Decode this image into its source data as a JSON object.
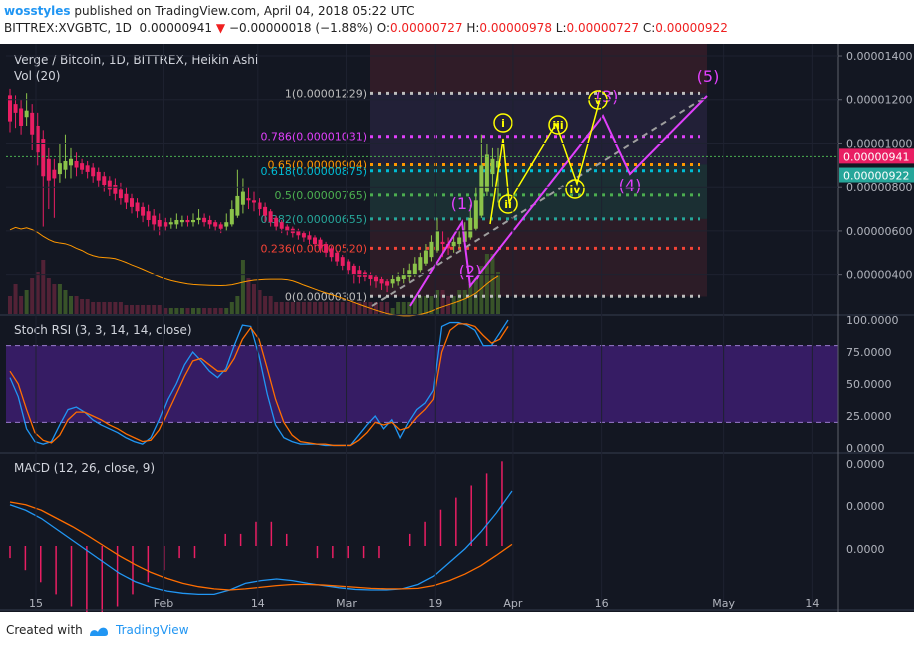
{
  "header": {
    "author": "wosstyles",
    "published_text": "published on TradingView.com, April 04, 2018 05:22 UTC",
    "symbol": "BITTREX:XVGBTC, 1D",
    "last": "0.00000941",
    "change": "−0.00000018 (−1.88%)",
    "o_label": "O:",
    "o_val": "0.00000727",
    "h_label": "H:",
    "h_val": "0.00000978",
    "l_label": "L:",
    "l_val": "0.00000727",
    "c_label": "C:",
    "c_val": "0.00000922"
  },
  "footer": {
    "created_with": "Created with",
    "brand": "TradingView"
  },
  "colors": {
    "background": "#131722",
    "up": "#8bc34a",
    "down": "#e91e63",
    "fib_zone": "#3d1f2b",
    "fib_zone2": "#1f3a3a",
    "stoch_band": "#3b1d6b",
    "stoch_k": "#2196f3",
    "stoch_d": "#ff6d00",
    "wave_yellow": "#ffff00",
    "wave_magenta": "#e040fb",
    "price_last": "#e91e63",
    "price_close": "#26a69a"
  },
  "chart_data": [
    {
      "type": "candlestick",
      "title": "Verge / Bitcoin, 1D, BITTREX, Heikin Ashi",
      "subtitle": "Vol (20)",
      "x_ticks": [
        "15",
        "Feb",
        "14",
        "Mar",
        "19",
        "Apr",
        "16",
        "May",
        "14"
      ],
      "y_ticks": [
        "0.00001400",
        "0.00001200",
        "0.00001000",
        "0.00000800",
        "0.00000600",
        "0.00000400"
      ],
      "ylim": [
        2.2e-06,
        1.455e-05
      ],
      "last_price_label": "0.00000941",
      "close_price_label": "0.00000922",
      "fib_levels": [
        {
          "label": "1(0.00001229)",
          "value": 1.229e-05,
          "color": "#bdbdbd"
        },
        {
          "label": "0.786(0.00001031)",
          "value": 1.031e-05,
          "color": "#e040fb"
        },
        {
          "label": "0.65(0.00000904)",
          "value": 9.04e-06,
          "color": "#ff9800"
        },
        {
          "label": "0.618(0.00000875)",
          "value": 8.75e-06,
          "color": "#00bcd4"
        },
        {
          "label": "0.5(0.00000765)",
          "value": 7.65e-06,
          "color": "#4caf50"
        },
        {
          "label": "0.382(0.00000655)",
          "value": 6.55e-06,
          "color": "#26a69a"
        },
        {
          "label": "0.236(0.00000520)",
          "value": 5.2e-06,
          "color": "#f44336"
        },
        {
          "label": "0(0.00000301)",
          "value": 3.01e-06,
          "color": "#bdbdbd"
        }
      ],
      "wave_labels": {
        "yellow": [
          "i",
          "ii",
          "iii",
          "iv",
          "v"
        ],
        "magenta": [
          "(1)",
          "(2)",
          "(3)",
          "(4)",
          "(5)"
        ]
      },
      "candles": [
        {
          "o": 1.22e-05,
          "c": 1.1e-05,
          "h": 1.25e-05,
          "l": 1.05e-05
        },
        {
          "o": 1.18e-05,
          "c": 1.14e-05,
          "h": 1.22e-05,
          "l": 1.07e-05
        },
        {
          "o": 1.16e-05,
          "c": 1.08e-05,
          "h": 1.2e-05,
          "l": 1.04e-05
        },
        {
          "o": 1.12e-05,
          "c": 1.15e-05,
          "h": 1.23e-05,
          "l": 1.08e-05
        },
        {
          "o": 1.14e-05,
          "c": 1.04e-05,
          "h": 1.18e-05,
          "l": 9.7e-06
        },
        {
          "o": 1.08e-05,
          "c": 9.6e-06,
          "h": 1.14e-05,
          "l": 9e-06
        },
        {
          "o": 1.02e-05,
          "c": 8.5e-06,
          "h": 1.06e-05,
          "l": 6.2e-06
        },
        {
          "o": 9.3e-06,
          "c": 8.3e-06,
          "h": 9.8e-06,
          "l": 7e-06
        },
        {
          "o": 8.8e-06,
          "c": 8.4e-06,
          "h": 9.3e-06,
          "l": 6.6e-06
        },
        {
          "o": 8.6e-06,
          "c": 9.1e-06,
          "h": 1e-05,
          "l": 8.2e-06
        },
        {
          "o": 8.8e-06,
          "c": 9.2e-06,
          "h": 1.04e-05,
          "l": 8.4e-06
        },
        {
          "o": 9e-06,
          "c": 9.3e-06,
          "h": 9.8e-06,
          "l": 8.4e-06
        },
        {
          "o": 9.2e-06,
          "c": 8.9e-06,
          "h": 9.6e-06,
          "l": 8.5e-06
        },
        {
          "o": 9.1e-06,
          "c": 8.8e-06,
          "h": 9.3e-06,
          "l": 8.6e-06
        },
        {
          "o": 9e-06,
          "c": 8.7e-06,
          "h": 9.2e-06,
          "l": 8.4e-06
        },
        {
          "o": 8.9e-06,
          "c": 8.5e-06,
          "h": 9.1e-06,
          "l": 8.2e-06
        },
        {
          "o": 8.7e-06,
          "c": 8.3e-06,
          "h": 8.9e-06,
          "l": 8e-06
        },
        {
          "o": 8.5e-06,
          "c": 8.1e-06,
          "h": 8.7e-06,
          "l": 7.8e-06
        },
        {
          "o": 8.3e-06,
          "c": 7.9e-06,
          "h": 8.5e-06,
          "l": 7.6e-06
        },
        {
          "o": 8.1e-06,
          "c": 7.7e-06,
          "h": 8.4e-06,
          "l": 7.4e-06
        },
        {
          "o": 7.9e-06,
          "c": 7.5e-06,
          "h": 8.2e-06,
          "l": 7.2e-06
        },
        {
          "o": 7.7e-06,
          "c": 7.3e-06,
          "h": 8e-06,
          "l": 7e-06
        },
        {
          "o": 7.5e-06,
          "c": 7.1e-06,
          "h": 7.7e-06,
          "l": 6.8e-06
        },
        {
          "o": 7.3e-06,
          "c": 6.9e-06,
          "h": 7.5e-06,
          "l": 6.6e-06
        },
        {
          "o": 7.1e-06,
          "c": 6.7e-06,
          "h": 7.3e-06,
          "l": 6.4e-06
        },
        {
          "o": 6.9e-06,
          "c": 6.5e-06,
          "h": 7.2e-06,
          "l": 6.2e-06
        },
        {
          "o": 6.7e-06,
          "c": 6.3e-06,
          "h": 7e-06,
          "l": 6e-06
        },
        {
          "o": 6.5e-06,
          "c": 6.2e-06,
          "h": 6.8e-06,
          "l": 5.8e-06
        },
        {
          "o": 6.4e-06,
          "c": 6.2e-06,
          "h": 6.6e-06,
          "l": 6e-06
        },
        {
          "o": 6.3e-06,
          "c": 6.4e-06,
          "h": 6.6e-06,
          "l": 6.1e-06
        },
        {
          "o": 6.3e-06,
          "c": 6.5e-06,
          "h": 6.8e-06,
          "l": 6.1e-06
        },
        {
          "o": 6.4e-06,
          "c": 6.5e-06,
          "h": 6.7e-06,
          "l": 6.2e-06
        },
        {
          "o": 6.5e-06,
          "c": 6.4e-06,
          "h": 6.7e-06,
          "l": 6.2e-06
        },
        {
          "o": 6.4e-06,
          "c": 6.5e-06,
          "h": 6.8e-06,
          "l": 6.2e-06
        },
        {
          "o": 6.5e-06,
          "c": 6.6e-06,
          "h": 7e-06,
          "l": 6.3e-06
        },
        {
          "o": 6.6e-06,
          "c": 6.4e-06,
          "h": 6.8e-06,
          "l": 6.2e-06
        },
        {
          "o": 6.5e-06,
          "c": 6.3e-06,
          "h": 6.7e-06,
          "l": 6.1e-06
        },
        {
          "o": 6.4e-06,
          "c": 6.2e-06,
          "h": 6.5e-06,
          "l": 6e-06
        },
        {
          "o": 6.3e-06,
          "c": 6.1e-06,
          "h": 6.4e-06,
          "l": 5.9e-06
        },
        {
          "o": 6.2e-06,
          "c": 6.4e-06,
          "h": 6.8e-06,
          "l": 6e-06
        },
        {
          "o": 6.3e-06,
          "c": 7e-06,
          "h": 7.4e-06,
          "l": 6.2e-06
        },
        {
          "o": 6.7e-06,
          "c": 7.6e-06,
          "h": 8.8e-06,
          "l": 6.6e-06
        },
        {
          "o": 7.2e-06,
          "c": 7.8e-06,
          "h": 8.4e-06,
          "l": 6.8e-06
        },
        {
          "o": 7.5e-06,
          "c": 7.4e-06,
          "h": 8e-06,
          "l": 7e-06
        },
        {
          "o": 7.4e-06,
          "c": 7.3e-06,
          "h": 7.8e-06,
          "l": 6.9e-06
        },
        {
          "o": 7.3e-06,
          "c": 7e-06,
          "h": 7.5e-06,
          "l": 6.7e-06
        },
        {
          "o": 7.1e-06,
          "c": 6.7e-06,
          "h": 7.3e-06,
          "l": 6.4e-06
        },
        {
          "o": 6.9e-06,
          "c": 6.4e-06,
          "h": 7e-06,
          "l": 6.2e-06
        },
        {
          "o": 6.6e-06,
          "c": 6.2e-06,
          "h": 6.7e-06,
          "l": 6e-06
        },
        {
          "o": 6.4e-06,
          "c": 6.1e-06,
          "h": 6.5e-06,
          "l": 5.9e-06
        },
        {
          "o": 6.2e-06,
          "c": 6e-06,
          "h": 6.3e-06,
          "l": 5.8e-06
        },
        {
          "o": 6.1e-06,
          "c": 5.9e-06,
          "h": 6.2e-06,
          "l": 5.7e-06
        },
        {
          "o": 6e-06,
          "c": 5.8e-06,
          "h": 6.1e-06,
          "l": 5.6e-06
        },
        {
          "o": 5.9e-06,
          "c": 5.7e-06,
          "h": 6e-06,
          "l": 5.5e-06
        },
        {
          "o": 5.8e-06,
          "c": 5.6e-06,
          "h": 6e-06,
          "l": 5.4e-06
        },
        {
          "o": 5.7e-06,
          "c": 5.4e-06,
          "h": 5.8e-06,
          "l": 5.2e-06
        },
        {
          "o": 5.6e-06,
          "c": 5.2e-06,
          "h": 5.7e-06,
          "l": 5e-06
        },
        {
          "o": 5.4e-06,
          "c": 5e-06,
          "h": 5.5e-06,
          "l": 4.8e-06
        },
        {
          "o": 5.2e-06,
          "c": 4.8e-06,
          "h": 5.3e-06,
          "l": 4.6e-06
        },
        {
          "o": 5e-06,
          "c": 4.6e-06,
          "h": 5.1e-06,
          "l": 4.4e-06
        },
        {
          "o": 4.8e-06,
          "c": 4.4e-06,
          "h": 4.9e-06,
          "l": 4.2e-06
        },
        {
          "o": 4.6e-06,
          "c": 4.2e-06,
          "h": 4.7e-06,
          "l": 4e-06
        },
        {
          "o": 4.4e-06,
          "c": 4e-06,
          "h": 4.5e-06,
          "l": 3.6e-06
        },
        {
          "o": 4.2e-06,
          "c": 3.9e-06,
          "h": 4.4e-06,
          "l": 3.6e-06
        },
        {
          "o": 4.1e-06,
          "c": 3.9e-06,
          "h": 4.2e-06,
          "l": 3.7e-06
        },
        {
          "o": 4e-06,
          "c": 3.8e-06,
          "h": 4.1e-06,
          "l": 3.5e-06
        },
        {
          "o": 3.9e-06,
          "c": 3.7e-06,
          "h": 4e-06,
          "l": 3.4e-06
        },
        {
          "o": 3.8e-06,
          "c": 3.6e-06,
          "h": 3.9e-06,
          "l": 3.3e-06
        },
        {
          "o": 3.7e-06,
          "c": 3.5e-06,
          "h": 3.8e-06,
          "l": 3.2e-06
        },
        {
          "o": 3.6e-06,
          "c": 3.8e-06,
          "h": 4e-06,
          "l": 3.4e-06
        },
        {
          "o": 3.7e-06,
          "c": 3.9e-06,
          "h": 4.1e-06,
          "l": 3.5e-06
        },
        {
          "o": 3.8e-06,
          "c": 4e-06,
          "h": 4.3e-06,
          "l": 3.6e-06
        },
        {
          "o": 3.9e-06,
          "c": 4.2e-06,
          "h": 4.5e-06,
          "l": 3.7e-06
        },
        {
          "o": 4e-06,
          "c": 4.5e-06,
          "h": 4.8e-06,
          "l": 3.9e-06
        },
        {
          "o": 4.2e-06,
          "c": 4.8e-06,
          "h": 5e-06,
          "l": 4.1e-06
        },
        {
          "o": 4.5e-06,
          "c": 5.1e-06,
          "h": 5.4e-06,
          "l": 4.4e-06
        },
        {
          "o": 4.8e-06,
          "c": 5.5e-06,
          "h": 5.8e-06,
          "l": 4.6e-06
        },
        {
          "o": 5.1e-06,
          "c": 6e-06,
          "h": 6.6e-06,
          "l": 5e-06
        },
        {
          "o": 5.5e-06,
          "c": 5.4e-06,
          "h": 6e-06,
          "l": 4.8e-06
        },
        {
          "o": 5.4e-06,
          "c": 5.2e-06,
          "h": 5.7e-06,
          "l": 4.9e-06
        },
        {
          "o": 5.3e-06,
          "c": 5.5e-06,
          "h": 5.8e-06,
          "l": 5e-06
        },
        {
          "o": 5.4e-06,
          "c": 5.7e-06,
          "h": 6e-06,
          "l": 5.2e-06
        },
        {
          "o": 5.5e-06,
          "c": 6e-06,
          "h": 6.4e-06,
          "l": 5.3e-06
        },
        {
          "o": 5.7e-06,
          "c": 6.6e-06,
          "h": 7.2e-06,
          "l": 5.6e-06
        },
        {
          "o": 6.1e-06,
          "c": 7.4e-06,
          "h": 8e-06,
          "l": 6e-06
        },
        {
          "o": 6.7e-06,
          "c": 9e-06,
          "h": 1.04e-05,
          "l": 6.6e-06
        },
        {
          "o": 7.8e-06,
          "c": 9.5e-06,
          "h": 1e-05,
          "l": 7.6e-06
        },
        {
          "o": 8.6e-06,
          "c": 9.3e-06,
          "h": 9.8e-06,
          "l": 8e-06
        },
        {
          "o": 8.9e-06,
          "c": 9.2e-06,
          "h": 9.8e-06,
          "l": 7.3e-06
        }
      ],
      "volumes": [
        0.3,
        0.5,
        0.3,
        0.4,
        0.6,
        0.7,
        0.9,
        0.6,
        0.5,
        0.5,
        0.4,
        0.3,
        0.3,
        0.25,
        0.25,
        0.2,
        0.2,
        0.2,
        0.2,
        0.2,
        0.2,
        0.15,
        0.15,
        0.15,
        0.15,
        0.15,
        0.15,
        0.15,
        0.1,
        0.1,
        0.1,
        0.1,
        0.1,
        0.1,
        0.1,
        0.1,
        0.1,
        0.1,
        0.1,
        0.1,
        0.2,
        0.3,
        0.9,
        0.6,
        0.5,
        0.4,
        0.3,
        0.3,
        0.2,
        0.2,
        0.2,
        0.2,
        0.2,
        0.2,
        0.2,
        0.2,
        0.2,
        0.2,
        0.2,
        0.2,
        0.2,
        0.2,
        0.2,
        0.2,
        0.2,
        0.2,
        0.2,
        0.2,
        0.2,
        0.1,
        0.2,
        0.2,
        0.2,
        0.3,
        0.3,
        0.3,
        0.3,
        0.4,
        0.4,
        0.3,
        0.3,
        0.4,
        0.4,
        0.5,
        0.6,
        0.8,
        1.0,
        1.0,
        0.7
      ]
    },
    {
      "type": "line",
      "title": "Stoch RSI (3, 3, 14, 14, close)",
      "y_ticks": [
        "100.0000",
        "75.0000",
        "50.0000",
        "25.0000",
        "0.0000"
      ],
      "ylim": [
        0,
        100
      ],
      "band": [
        20,
        80
      ],
      "series": [
        {
          "values": [
            55,
            40,
            15,
            5,
            3,
            5,
            18,
            30,
            32,
            28,
            22,
            18,
            15,
            12,
            8,
            5,
            3,
            8,
            22,
            38,
            50,
            65,
            75,
            68,
            60,
            55,
            62,
            80,
            96,
            95,
            72,
            42,
            18,
            8,
            5,
            3,
            3,
            3,
            2,
            2,
            2,
            2,
            10,
            18,
            25,
            15,
            22,
            8,
            20,
            30,
            35,
            45,
            95,
            98,
            98,
            96,
            92,
            80,
            80,
            90,
            100
          ]
        },
        {
          "values": [
            60,
            50,
            30,
            12,
            6,
            4,
            10,
            22,
            28,
            28,
            25,
            22,
            18,
            15,
            11,
            8,
            5,
            6,
            14,
            28,
            42,
            56,
            68,
            70,
            65,
            60,
            60,
            70,
            85,
            94,
            85,
            62,
            38,
            20,
            10,
            5,
            4,
            3,
            3,
            2,
            2,
            2,
            6,
            12,
            20,
            18,
            20,
            14,
            16,
            24,
            30,
            38,
            75,
            92,
            97,
            97,
            95,
            88,
            82,
            85,
            95
          ]
        }
      ]
    },
    {
      "type": "bar",
      "title": "MACD (12, 26, close, 9)",
      "y_ticks": [
        "0.0000",
        "0.0000",
        "0.0000"
      ],
      "series": [
        {
          "values": [
            7.5,
            6.5,
            5.0,
            3.0,
            1.0,
            -1.0,
            -3.0,
            -5.0,
            -6.5,
            -7.5,
            -8.2,
            -8.6,
            -8.8,
            -8.8,
            -8.0,
            -6.8,
            -6.3,
            -6.0,
            -6.3,
            -6.8,
            -7.2,
            -7.6,
            -7.9,
            -8.0,
            -8.0,
            -7.8,
            -7.0,
            -5.5,
            -3.0,
            -0.5,
            2.5,
            6.0,
            10.0
          ]
        },
        {
          "values": [
            8.0,
            7.5,
            6.5,
            5.0,
            3.5,
            1.8,
            0.0,
            -1.8,
            -3.4,
            -4.8,
            -5.9,
            -6.8,
            -7.4,
            -7.8,
            -8.0,
            -7.8,
            -7.5,
            -7.2,
            -7.0,
            -7.0,
            -7.1,
            -7.3,
            -7.5,
            -7.7,
            -7.8,
            -7.8,
            -7.7,
            -7.2,
            -6.3,
            -5.1,
            -3.6,
            -1.7,
            0.3
          ]
        },
        {
          "values": [
            -1,
            -2,
            -3,
            -4,
            -5,
            -6,
            -6,
            -5,
            -4,
            -3,
            -2,
            -1,
            -1,
            0,
            1,
            1,
            2,
            2,
            1,
            0,
            -1,
            -1,
            -1,
            -1,
            -1,
            0,
            1,
            2,
            3,
            4,
            5,
            6,
            7
          ]
        }
      ]
    }
  ]
}
